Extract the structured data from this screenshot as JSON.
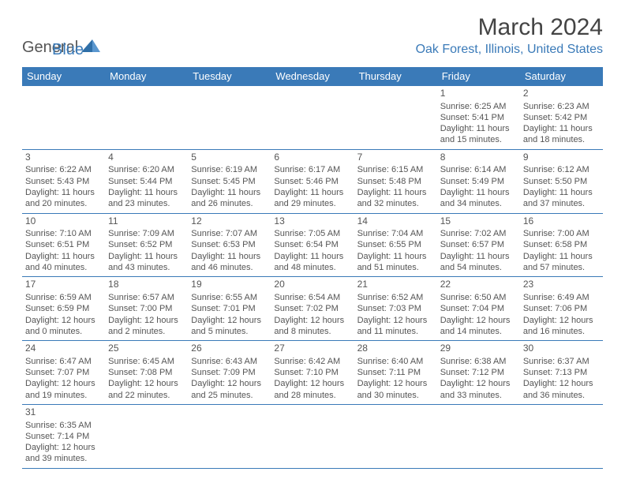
{
  "logo": {
    "general": "General",
    "blue": "Blue"
  },
  "title": "March 2024",
  "location": "Oak Forest, Illinois, United States",
  "colors": {
    "header_bg": "#3a7ab8",
    "header_fg": "#ffffff",
    "border": "#3a7ab8",
    "text": "#555555",
    "title_color": "#444444",
    "location_color": "#3a7ab8"
  },
  "fonts": {
    "title_size": 30,
    "location_size": 16,
    "weekday_size": 13,
    "cell_size": 11,
    "daynum_size": 12
  },
  "weekdays": [
    "Sunday",
    "Monday",
    "Tuesday",
    "Wednesday",
    "Thursday",
    "Friday",
    "Saturday"
  ],
  "weeks": [
    [
      null,
      null,
      null,
      null,
      null,
      {
        "d": "1",
        "sr": "Sunrise: 6:25 AM",
        "ss": "Sunset: 5:41 PM",
        "dl1": "Daylight: 11 hours",
        "dl2": "and 15 minutes."
      },
      {
        "d": "2",
        "sr": "Sunrise: 6:23 AM",
        "ss": "Sunset: 5:42 PM",
        "dl1": "Daylight: 11 hours",
        "dl2": "and 18 minutes."
      }
    ],
    [
      {
        "d": "3",
        "sr": "Sunrise: 6:22 AM",
        "ss": "Sunset: 5:43 PM",
        "dl1": "Daylight: 11 hours",
        "dl2": "and 20 minutes."
      },
      {
        "d": "4",
        "sr": "Sunrise: 6:20 AM",
        "ss": "Sunset: 5:44 PM",
        "dl1": "Daylight: 11 hours",
        "dl2": "and 23 minutes."
      },
      {
        "d": "5",
        "sr": "Sunrise: 6:19 AM",
        "ss": "Sunset: 5:45 PM",
        "dl1": "Daylight: 11 hours",
        "dl2": "and 26 minutes."
      },
      {
        "d": "6",
        "sr": "Sunrise: 6:17 AM",
        "ss": "Sunset: 5:46 PM",
        "dl1": "Daylight: 11 hours",
        "dl2": "and 29 minutes."
      },
      {
        "d": "7",
        "sr": "Sunrise: 6:15 AM",
        "ss": "Sunset: 5:48 PM",
        "dl1": "Daylight: 11 hours",
        "dl2": "and 32 minutes."
      },
      {
        "d": "8",
        "sr": "Sunrise: 6:14 AM",
        "ss": "Sunset: 5:49 PM",
        "dl1": "Daylight: 11 hours",
        "dl2": "and 34 minutes."
      },
      {
        "d": "9",
        "sr": "Sunrise: 6:12 AM",
        "ss": "Sunset: 5:50 PM",
        "dl1": "Daylight: 11 hours",
        "dl2": "and 37 minutes."
      }
    ],
    [
      {
        "d": "10",
        "sr": "Sunrise: 7:10 AM",
        "ss": "Sunset: 6:51 PM",
        "dl1": "Daylight: 11 hours",
        "dl2": "and 40 minutes."
      },
      {
        "d": "11",
        "sr": "Sunrise: 7:09 AM",
        "ss": "Sunset: 6:52 PM",
        "dl1": "Daylight: 11 hours",
        "dl2": "and 43 minutes."
      },
      {
        "d": "12",
        "sr": "Sunrise: 7:07 AM",
        "ss": "Sunset: 6:53 PM",
        "dl1": "Daylight: 11 hours",
        "dl2": "and 46 minutes."
      },
      {
        "d": "13",
        "sr": "Sunrise: 7:05 AM",
        "ss": "Sunset: 6:54 PM",
        "dl1": "Daylight: 11 hours",
        "dl2": "and 48 minutes."
      },
      {
        "d": "14",
        "sr": "Sunrise: 7:04 AM",
        "ss": "Sunset: 6:55 PM",
        "dl1": "Daylight: 11 hours",
        "dl2": "and 51 minutes."
      },
      {
        "d": "15",
        "sr": "Sunrise: 7:02 AM",
        "ss": "Sunset: 6:57 PM",
        "dl1": "Daylight: 11 hours",
        "dl2": "and 54 minutes."
      },
      {
        "d": "16",
        "sr": "Sunrise: 7:00 AM",
        "ss": "Sunset: 6:58 PM",
        "dl1": "Daylight: 11 hours",
        "dl2": "and 57 minutes."
      }
    ],
    [
      {
        "d": "17",
        "sr": "Sunrise: 6:59 AM",
        "ss": "Sunset: 6:59 PM",
        "dl1": "Daylight: 12 hours",
        "dl2": "and 0 minutes."
      },
      {
        "d": "18",
        "sr": "Sunrise: 6:57 AM",
        "ss": "Sunset: 7:00 PM",
        "dl1": "Daylight: 12 hours",
        "dl2": "and 2 minutes."
      },
      {
        "d": "19",
        "sr": "Sunrise: 6:55 AM",
        "ss": "Sunset: 7:01 PM",
        "dl1": "Daylight: 12 hours",
        "dl2": "and 5 minutes."
      },
      {
        "d": "20",
        "sr": "Sunrise: 6:54 AM",
        "ss": "Sunset: 7:02 PM",
        "dl1": "Daylight: 12 hours",
        "dl2": "and 8 minutes."
      },
      {
        "d": "21",
        "sr": "Sunrise: 6:52 AM",
        "ss": "Sunset: 7:03 PM",
        "dl1": "Daylight: 12 hours",
        "dl2": "and 11 minutes."
      },
      {
        "d": "22",
        "sr": "Sunrise: 6:50 AM",
        "ss": "Sunset: 7:04 PM",
        "dl1": "Daylight: 12 hours",
        "dl2": "and 14 minutes."
      },
      {
        "d": "23",
        "sr": "Sunrise: 6:49 AM",
        "ss": "Sunset: 7:06 PM",
        "dl1": "Daylight: 12 hours",
        "dl2": "and 16 minutes."
      }
    ],
    [
      {
        "d": "24",
        "sr": "Sunrise: 6:47 AM",
        "ss": "Sunset: 7:07 PM",
        "dl1": "Daylight: 12 hours",
        "dl2": "and 19 minutes."
      },
      {
        "d": "25",
        "sr": "Sunrise: 6:45 AM",
        "ss": "Sunset: 7:08 PM",
        "dl1": "Daylight: 12 hours",
        "dl2": "and 22 minutes."
      },
      {
        "d": "26",
        "sr": "Sunrise: 6:43 AM",
        "ss": "Sunset: 7:09 PM",
        "dl1": "Daylight: 12 hours",
        "dl2": "and 25 minutes."
      },
      {
        "d": "27",
        "sr": "Sunrise: 6:42 AM",
        "ss": "Sunset: 7:10 PM",
        "dl1": "Daylight: 12 hours",
        "dl2": "and 28 minutes."
      },
      {
        "d": "28",
        "sr": "Sunrise: 6:40 AM",
        "ss": "Sunset: 7:11 PM",
        "dl1": "Daylight: 12 hours",
        "dl2": "and 30 minutes."
      },
      {
        "d": "29",
        "sr": "Sunrise: 6:38 AM",
        "ss": "Sunset: 7:12 PM",
        "dl1": "Daylight: 12 hours",
        "dl2": "and 33 minutes."
      },
      {
        "d": "30",
        "sr": "Sunrise: 6:37 AM",
        "ss": "Sunset: 7:13 PM",
        "dl1": "Daylight: 12 hours",
        "dl2": "and 36 minutes."
      }
    ],
    [
      {
        "d": "31",
        "sr": "Sunrise: 6:35 AM",
        "ss": "Sunset: 7:14 PM",
        "dl1": "Daylight: 12 hours",
        "dl2": "and 39 minutes."
      },
      null,
      null,
      null,
      null,
      null,
      null
    ]
  ]
}
